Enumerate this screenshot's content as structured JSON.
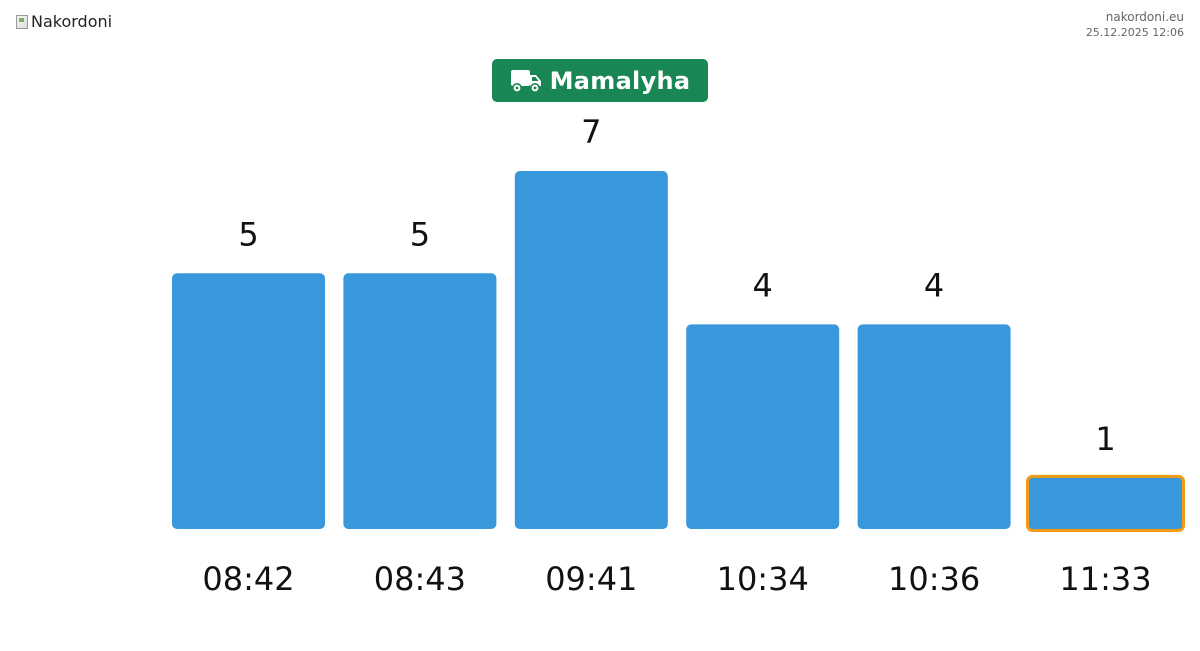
{
  "header": {
    "logo_alt": "Nakordoni",
    "site": "nakordoni.eu",
    "timestamp": "25.12.2025 12:06"
  },
  "badge": {
    "label": "Mamalyha",
    "icon": "truck-icon",
    "color": "#198754"
  },
  "chart_data": {
    "type": "bar",
    "title": "",
    "xlabel": "",
    "ylabel": "",
    "categories": [
      "08:42",
      "08:43",
      "09:41",
      "10:34",
      "10:36",
      "11:33"
    ],
    "values": [
      5,
      5,
      7,
      4,
      4,
      1
    ],
    "ylim": [
      0,
      7
    ],
    "bar_color": "#3898db",
    "highlight_index": 5,
    "highlight_border_color": "#f39c12",
    "grid": false,
    "legend": "none"
  }
}
